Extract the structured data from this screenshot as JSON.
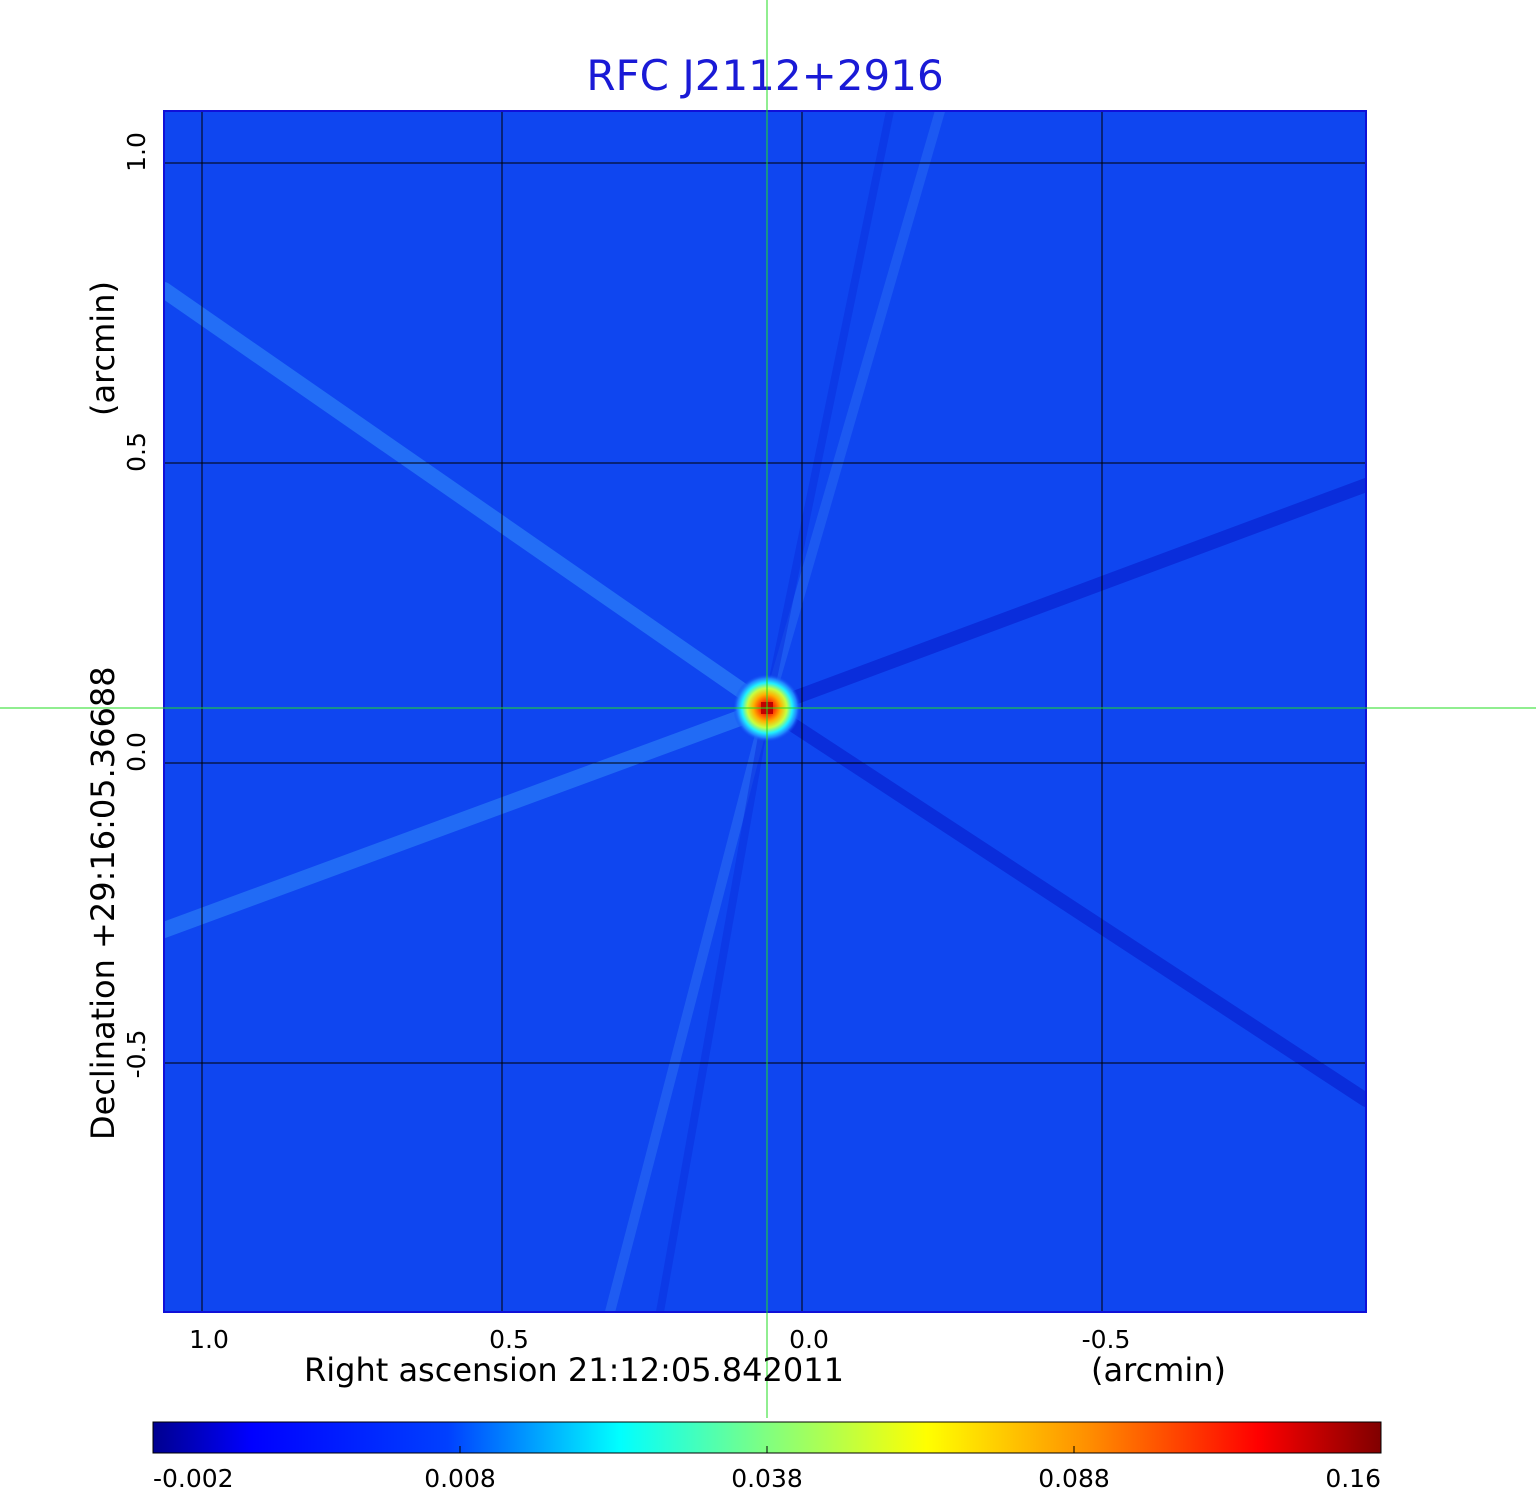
{
  "figure": {
    "title": "RFC J2112+2916",
    "title_color": "#1a1ad6",
    "xaxis": {
      "label_left": "Right ascension  21:12:05.842011",
      "label_right": "(arcmin)",
      "ticks": [
        "1.0",
        "0.5",
        "0.0",
        "-0.5"
      ],
      "tick_values": [
        1.0,
        0.5,
        0.0,
        -0.5
      ],
      "range": [
        1.0635,
        -0.9417
      ]
    },
    "yaxis": {
      "label_left": "Declination  +29:16:05.36688",
      "label_right": "(arcmin)",
      "ticks": [
        "1.0",
        "0.5",
        "0.0",
        "-0.5"
      ],
      "tick_values": [
        1.0,
        0.5,
        0.0,
        -0.5
      ],
      "range": [
        -0.9167,
        1.0833
      ]
    },
    "crosshair": {
      "ra_arcmin": 0.058,
      "dec_arcmin": 0.092,
      "color": "#22dd22"
    },
    "source_peak": {
      "ra_arcmin": 0.058,
      "dec_arcmin": 0.092,
      "value": 0.16
    },
    "colorbar": {
      "ticks": [
        "-0.002",
        "0.008",
        "0.038",
        "0.088",
        "0.16"
      ],
      "colormap": "jet",
      "stops": [
        "#00008f",
        "#0000ff",
        "#00ffff",
        "#ffff00",
        "#ff0000",
        "#800000"
      ]
    },
    "image_colors": {
      "background": "#0f46f0",
      "sidelobe_light": "#2277f6",
      "sidelobe_dark": "#0a2ede"
    }
  }
}
